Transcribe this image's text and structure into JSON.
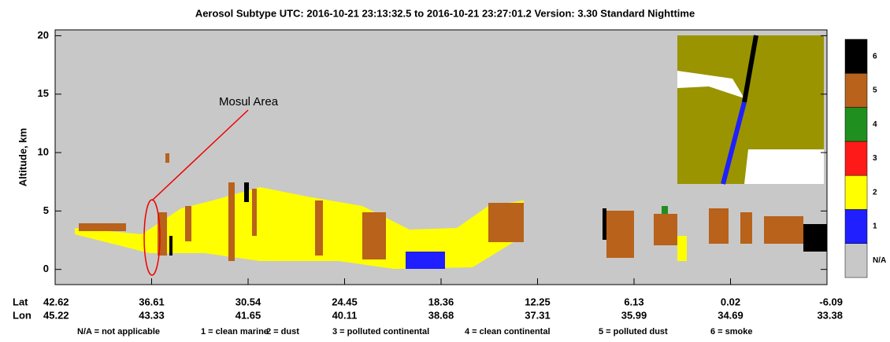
{
  "chart_data": {
    "type": "curtain",
    "title": "Aerosol Subtype    UTC:  2016-10-21   23:13:32.5  to  2016-10-21   23:27:01.2    Version: 3.30  Standard Nighttime",
    "y_label": "Altitude, km",
    "ylim": [
      -1.3,
      20.5
    ],
    "yticks": [
      0,
      5,
      10,
      15,
      20
    ],
    "lat_label": "Lat",
    "lon_label": "Lon",
    "lat_ticks": [
      42.62,
      36.61,
      30.54,
      24.45,
      18.36,
      12.25,
      6.13,
      0.02,
      -6.09
    ],
    "lon_ticks": [
      45.22,
      43.33,
      41.65,
      40.11,
      38.68,
      37.31,
      35.99,
      34.69,
      33.38
    ],
    "annotation": "Mosul Area",
    "colorbar": {
      "labels": [
        "N/A",
        1,
        2,
        3,
        4,
        5,
        6
      ],
      "colors": [
        "#c8c8c8",
        "#1f1fff",
        "#ffff00",
        "#ff1a1a",
        "#1f8f1f",
        "#b8621b",
        "#000000"
      ]
    },
    "legend": [
      "N/A = not applicable",
      "1 = clean marine",
      "2 = dust",
      "3 = polluted continental",
      "4 = clean continental",
      "5 = polluted dust",
      "6 = smoke"
    ]
  }
}
